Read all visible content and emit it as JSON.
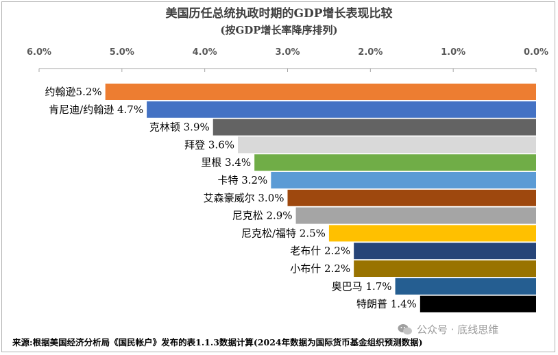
{
  "title": "美国历任总统执政时期的GDP增长表现比较",
  "subtitle": "(按GDP增长率降序排列)",
  "source": "来源:根据美国经济分析局《国民帐户》发布的表1.1.3数据计算(2024年数据为国际货币基金组织预测数据)",
  "watermark": "公众号 · 底线思维",
  "chart_data": {
    "type": "bar",
    "orientation": "horizontal",
    "x_axis_reversed": true,
    "xlim": [
      0,
      6.0
    ],
    "x_ticks": [
      "6.0%",
      "5.0%",
      "4.0%",
      "3.0%",
      "2.0%",
      "1.0%",
      "0.0%"
    ],
    "x_tick_values": [
      6.0,
      5.0,
      4.0,
      3.0,
      2.0,
      1.0,
      0.0
    ],
    "grid": false,
    "categories": [
      "约翰逊",
      "肯尼迪/约翰逊",
      "克林顿",
      "拜登",
      "里根",
      "卡特",
      "艾森豪威尔",
      "尼克松",
      "尼克松/福特",
      "老布什",
      "小布什",
      "奥巴马",
      "特朗普"
    ],
    "values": [
      5.2,
      4.7,
      3.9,
      3.6,
      3.4,
      3.2,
      3.0,
      2.9,
      2.5,
      2.2,
      2.2,
      1.7,
      1.4
    ],
    "labels": [
      "约翰逊5.2%",
      "肯尼迪/约翰逊 4.7%",
      "克林顿 3.9%",
      "拜登 3.6%",
      "里根 3.4%",
      "卡特 3.2%",
      "艾森豪威尔 3.0%",
      "尼克松 2.9%",
      "尼克松/福特 2.5%",
      "老布什 2.2%",
      "小布什 2.2%",
      "奥巴马 1.7%",
      "特朗普 1.4%"
    ],
    "colors": [
      "#ED7D31",
      "#4472C4",
      "#636363",
      "#D9D9D9",
      "#70AD47",
      "#5B9BD5",
      "#9E480E",
      "#A5A5A5",
      "#FFC000",
      "#264478",
      "#997300",
      "#255E91",
      "#000000"
    ]
  }
}
